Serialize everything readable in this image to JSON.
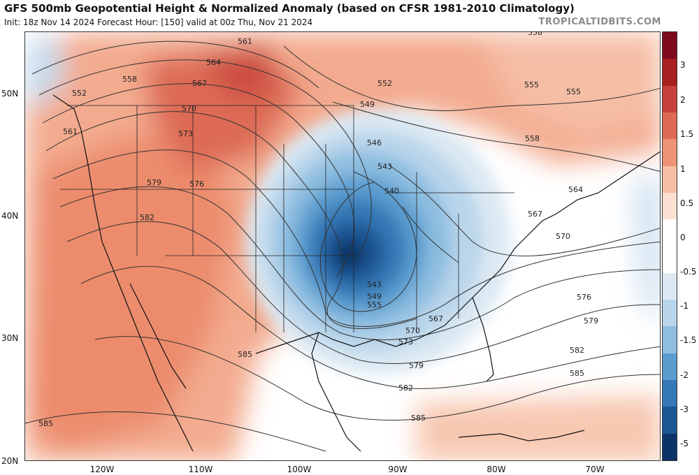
{
  "header": {
    "title": "GFS 500mb Geopotential Height & Normalized Anomaly (based on CFSR 1981-2010 Climatology)",
    "subtitle": "Init: 18z Nov 14 2024   Forecast Hour: [150]   valid at 00z Thu, Nov 21 2024",
    "site": "TROPICALTIDBITS.COM"
  },
  "axes": {
    "lat_labels": [
      {
        "text": "50N"
      },
      {
        "text": "40N"
      },
      {
        "text": "30N"
      },
      {
        "text": "20N"
      }
    ],
    "lon_labels": [
      {
        "text": "120W"
      },
      {
        "text": "110W"
      },
      {
        "text": "100W"
      },
      {
        "text": "90W"
      },
      {
        "text": "80W"
      },
      {
        "text": "70W"
      }
    ]
  },
  "colorbar": {
    "labels": [
      "3",
      "2",
      "1.5",
      "1",
      "0.5",
      "0",
      "-0.5",
      "-1",
      "-1.5",
      "-2",
      "-3",
      "-5"
    ],
    "colors": [
      "#7f0a1e",
      "#a8201f",
      "#c8413a",
      "#dd6a55",
      "#ee9376",
      "#f7bfa5",
      "#fbe0d3",
      "#ffffff",
      "#ffffff",
      "#dce9f3",
      "#b9d5ea",
      "#8dbde0",
      "#5c9dcf",
      "#3478b6",
      "#1b5694",
      "#0c3468"
    ]
  },
  "contour_labels": [
    "552",
    "558",
    "561",
    "564",
    "567",
    "570",
    "573",
    "576",
    "579",
    "582",
    "585",
    "546",
    "549",
    "543",
    "540",
    "555"
  ],
  "colors": {
    "positive_anomaly": "#ee9376",
    "negative_anomaly": "#1b5694",
    "contour": "#333333"
  }
}
